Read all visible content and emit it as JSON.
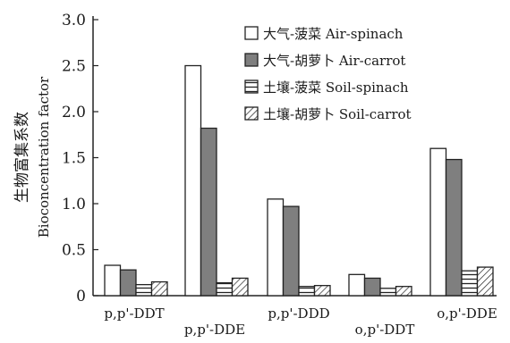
{
  "chart_data": {
    "type": "bar",
    "ylabel": "生物富集系数",
    "ylabel_en": "Bioconcentration factor",
    "ylim": [
      0,
      3.0
    ],
    "yticks": [
      "0",
      "0.5",
      "1.0",
      "1.5",
      "2.0",
      "2.5",
      "3.0"
    ],
    "categories": [
      "p,p'-DDT",
      "p,p'-DDE",
      "p,p'-DDD",
      "o,p'-DDT",
      "o,p'-DDE"
    ],
    "series": [
      {
        "name": "大气-菠菜 Air-spinach",
        "fill": "white",
        "values": [
          0.33,
          2.5,
          1.05,
          0.23,
          1.6
        ]
      },
      {
        "name": "大气-胡萝卜 Air-carrot",
        "fill": "gray",
        "values": [
          0.28,
          1.82,
          0.97,
          0.19,
          1.48
        ]
      },
      {
        "name": "土壤-菠菜 Soil-spinach",
        "fill": "hlines",
        "values": [
          0.12,
          0.14,
          0.1,
          0.08,
          0.27
        ]
      },
      {
        "name": "土壤-胡萝卜 Soil-carrot",
        "fill": "diag",
        "values": [
          0.15,
          0.19,
          0.11,
          0.1,
          0.31
        ]
      }
    ],
    "legend_position": "top-right",
    "grid": false
  },
  "colors": {
    "axis": "#222222",
    "gray_fill": "#7f7f7f",
    "white_fill": "#ffffff",
    "stroke": "#222222"
  }
}
